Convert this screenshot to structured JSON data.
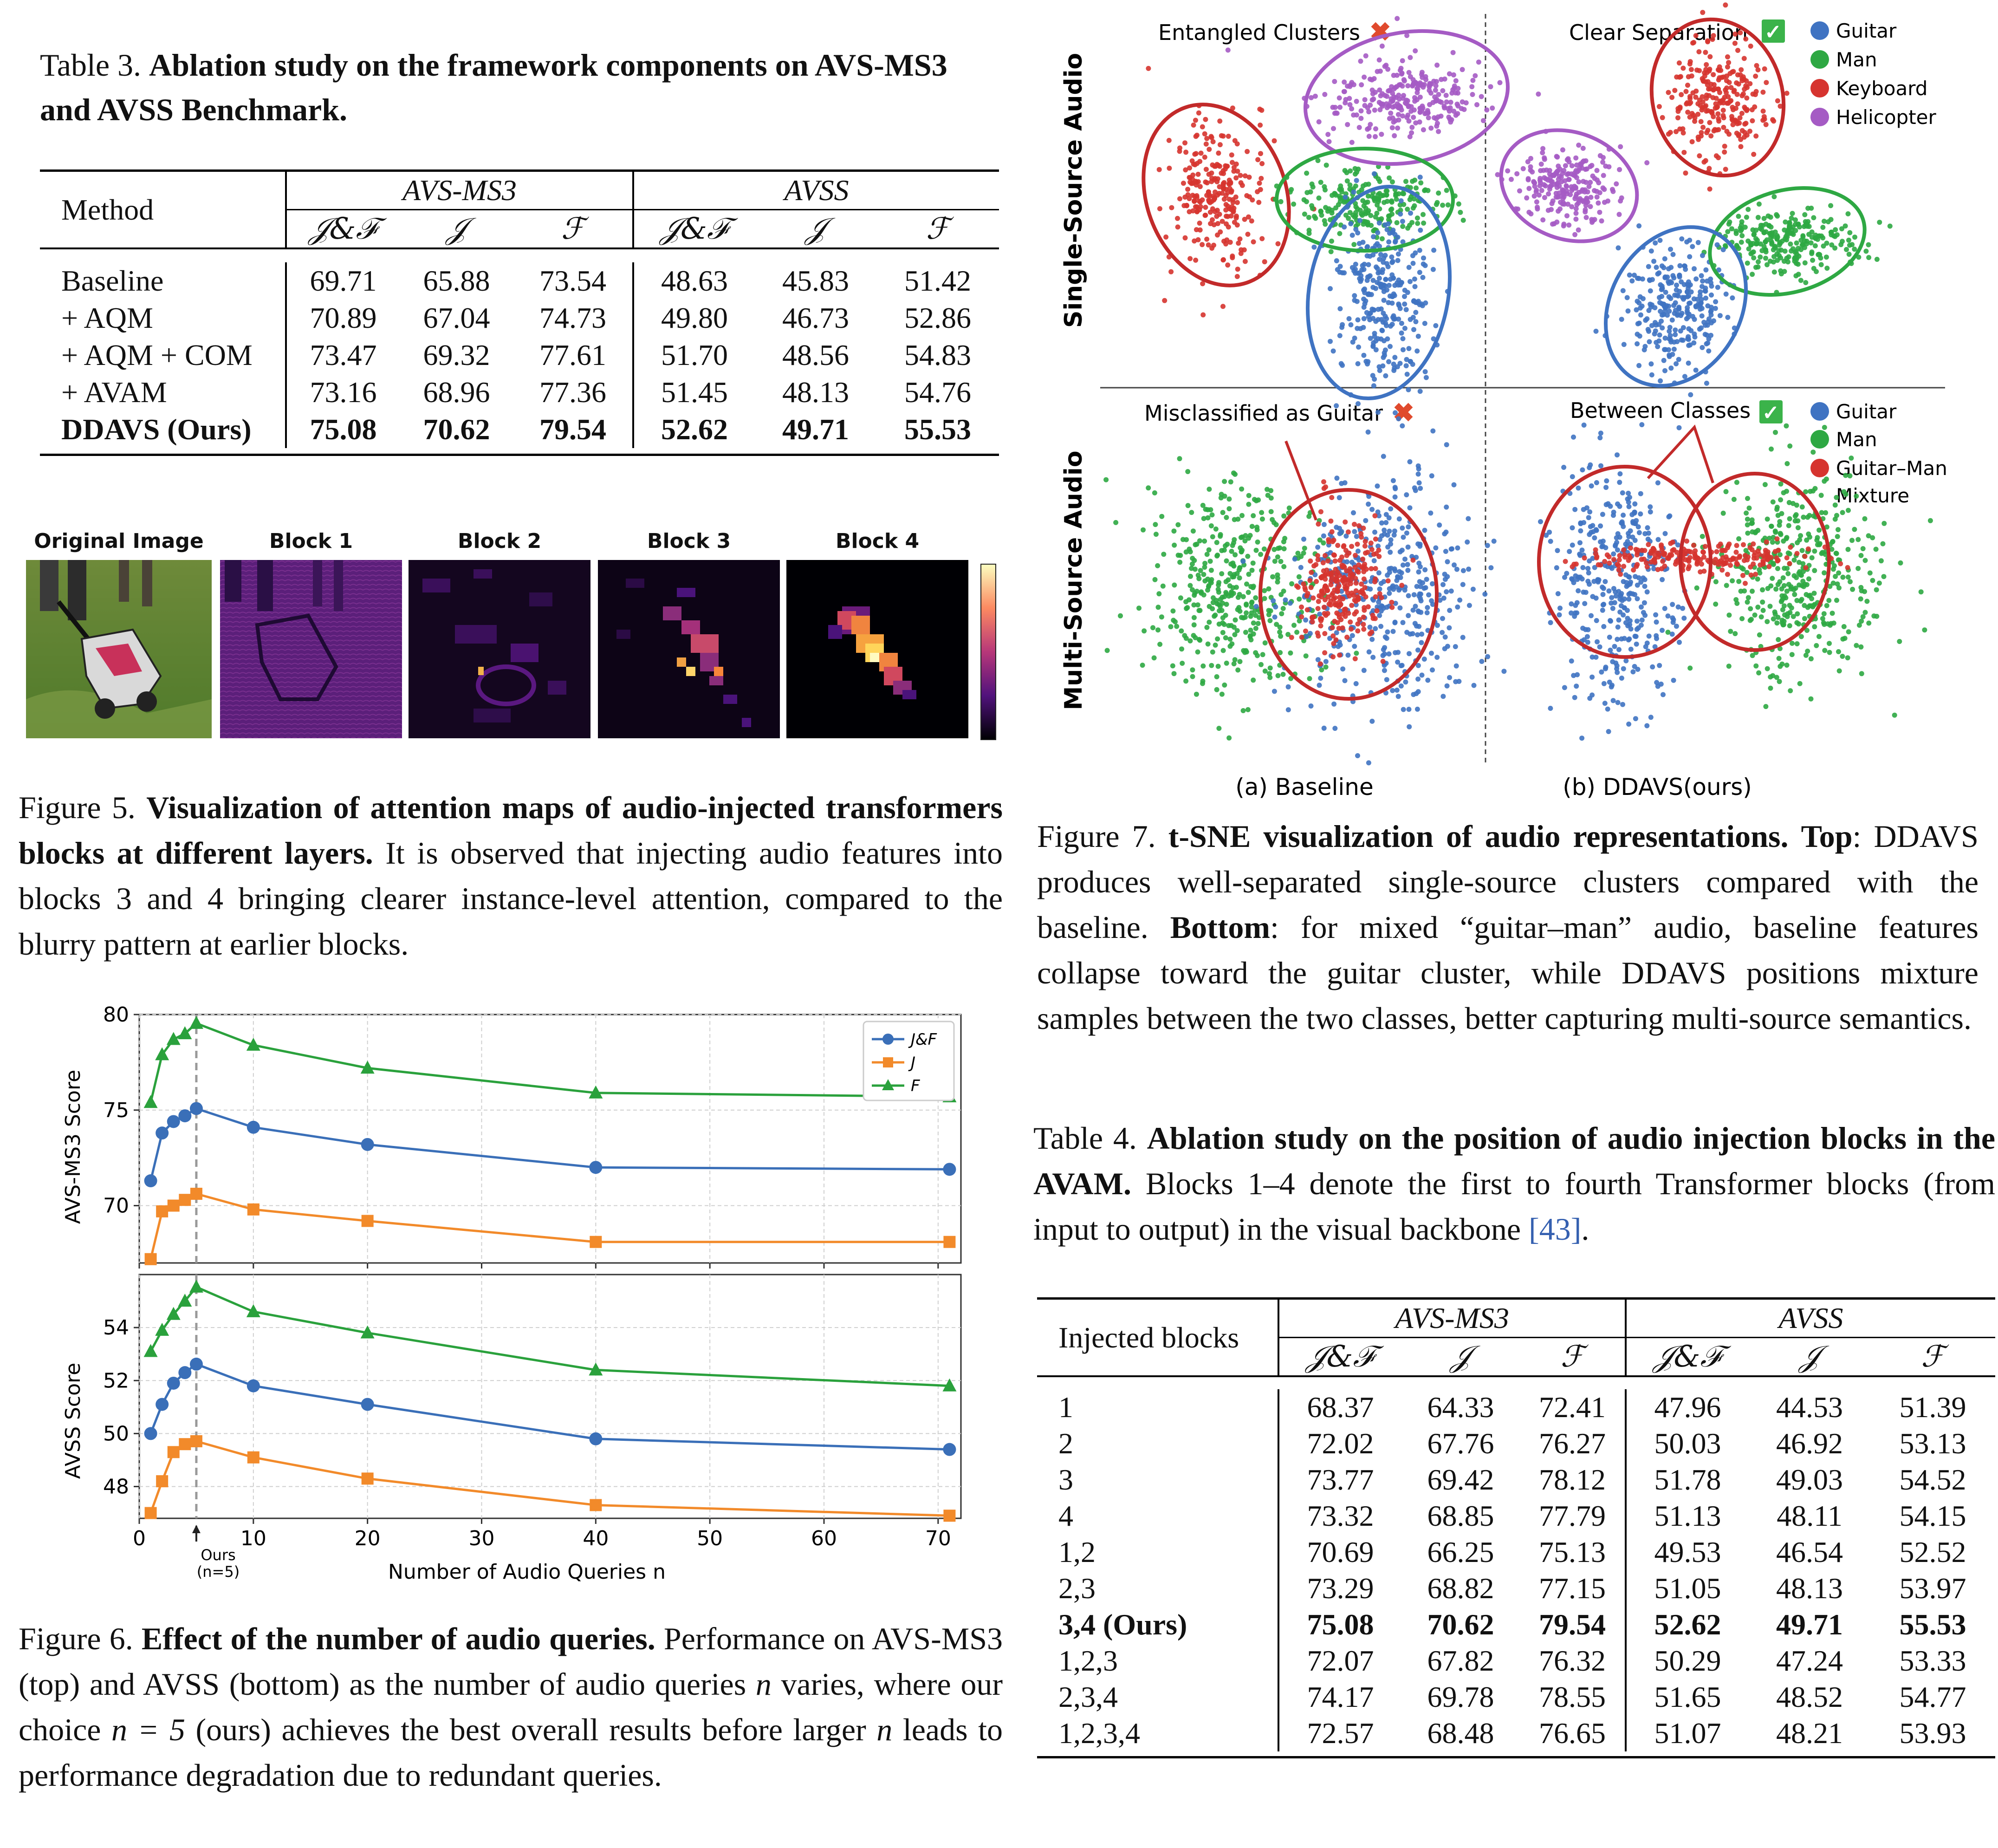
{
  "table3": {
    "label": "Table 3.",
    "title": "Ablation study on the framework components on AVS-MS3 and AVSS Benchmark.",
    "method_header": "Method",
    "group_headers": [
      "AVS-MS3",
      "AVSS"
    ],
    "metric_headers": [
      "𝒥&ℱ",
      "𝒥",
      "ℱ",
      "𝒥&ℱ",
      "𝒥",
      "ℱ"
    ],
    "rows": [
      {
        "method": "Baseline",
        "values": [
          "69.71",
          "65.88",
          "73.54",
          "48.63",
          "45.83",
          "51.42"
        ]
      },
      {
        "method": "+ AQM",
        "values": [
          "70.89",
          "67.04",
          "74.73",
          "49.80",
          "46.73",
          "52.86"
        ]
      },
      {
        "method": "+ AQM + COM",
        "values": [
          "73.47",
          "69.32",
          "77.61",
          "51.70",
          "48.56",
          "54.83"
        ]
      },
      {
        "method": "+ AVAM",
        "values": [
          "73.16",
          "68.96",
          "77.36",
          "51.45",
          "48.13",
          "54.76"
        ]
      },
      {
        "method": "DDAVS (Ours)",
        "values": [
          "75.08",
          "70.62",
          "79.54",
          "52.62",
          "49.71",
          "55.53"
        ],
        "bold": true
      }
    ]
  },
  "figure5": {
    "panel_titles": [
      "Original Image",
      "Block 1",
      "Block 2",
      "Block 3",
      "Block 4"
    ],
    "label": "Figure 5.",
    "title": "Visualization of attention maps of audio-injected transformers blocks at different layers.",
    "body": "It is observed that injecting audio features into blocks 3 and 4 bringing clearer instance-level attention, compared to the blurry pattern at earlier blocks."
  },
  "figure6": {
    "label": "Figure 6.",
    "title": "Effect of the number of audio queries.",
    "body_1": "Performance on AVS-MS3 (top) and AVSS (bottom) as the number of audio queries",
    "body_n1": "n",
    "body_2": "varies, where our choice",
    "body_eq": "n = 5",
    "body_3": "(ours) achieves the best overall results before larger",
    "body_n2": "n",
    "body_4": "leads to performance degradation due to redundant queries.",
    "xlabel": "Number of Audio Queries n",
    "ours_label_1": "Ours",
    "ours_label_2": "(n=5)",
    "legend": [
      "J&F",
      "J",
      "F"
    ]
  },
  "chart_data": [
    {
      "type": "line",
      "title": "",
      "xlabel": "Number of Audio Queries n",
      "ylabel": "AVS-MS3 Score",
      "x": [
        1,
        2,
        3,
        4,
        5,
        10,
        20,
        40,
        71
      ],
      "xlim": [
        0,
        72
      ],
      "ylim": [
        67,
        80
      ],
      "xticks": [
        0,
        10,
        20,
        30,
        40,
        50,
        60,
        70
      ],
      "yticks": [
        70,
        75,
        80
      ],
      "grid": true,
      "legend_position": "top-right",
      "colors": {
        "J&F": "#3a6fb8",
        "J": "#f28a2a",
        "F": "#2aa13c"
      },
      "series": [
        {
          "name": "J&F",
          "marker": "circle",
          "values": [
            71.3,
            73.8,
            74.4,
            74.7,
            75.08,
            74.1,
            73.2,
            72.0,
            71.9
          ]
        },
        {
          "name": "J",
          "marker": "square",
          "values": [
            67.2,
            69.7,
            70.0,
            70.3,
            70.62,
            69.8,
            69.2,
            68.1,
            68.1
          ]
        },
        {
          "name": "F",
          "marker": "triangle",
          "values": [
            75.4,
            77.9,
            78.7,
            79.0,
            79.54,
            78.4,
            77.2,
            75.9,
            75.7
          ]
        }
      ]
    },
    {
      "type": "line",
      "title": "",
      "xlabel": "Number of Audio Queries n",
      "ylabel": "AVSS Score",
      "x": [
        1,
        2,
        3,
        4,
        5,
        10,
        20,
        40,
        71
      ],
      "xlim": [
        0,
        72
      ],
      "ylim": [
        46.8,
        56
      ],
      "xticks": [
        0,
        10,
        20,
        30,
        40,
        50,
        60,
        70
      ],
      "yticks": [
        48,
        50,
        52,
        54
      ],
      "grid": true,
      "colors": {
        "J&F": "#3a6fb8",
        "J": "#f28a2a",
        "F": "#2aa13c"
      },
      "series": [
        {
          "name": "J&F",
          "marker": "circle",
          "values": [
            50.0,
            51.1,
            51.9,
            52.3,
            52.62,
            51.8,
            51.1,
            49.8,
            49.4
          ]
        },
        {
          "name": "J",
          "marker": "square",
          "values": [
            47.0,
            48.2,
            49.3,
            49.6,
            49.71,
            49.1,
            48.3,
            47.3,
            46.9
          ]
        },
        {
          "name": "F",
          "marker": "triangle",
          "values": [
            53.1,
            53.9,
            54.5,
            55.0,
            55.53,
            54.6,
            53.8,
            52.4,
            51.8
          ]
        }
      ]
    }
  ],
  "figure7": {
    "row_labels": [
      "Single-Source Audio",
      "Multi-Source Audio"
    ],
    "top_left_title": "Entangled Clusters",
    "top_right_title": "Clear Separation",
    "bottom_left_title": "Misclassified as Guitar",
    "bottom_right_title": "Between Classes",
    "legend_top": [
      "Guitar",
      "Man",
      "Keyboard",
      "Helicopter"
    ],
    "legend_bottom": [
      "Guitar",
      "Man",
      "Guitar–Man",
      "Mixture"
    ],
    "col_labels": [
      "(a) Baseline",
      "(b) DDAVS(ours)"
    ],
    "colors": {
      "guitar": "#3f73c2",
      "man": "#2ea843",
      "keyboard": "#d6342f",
      "helicopter": "#a55bc4",
      "cross": "#e04a2d",
      "check": "#3bb34a"
    },
    "label": "Figure 7.",
    "title": "t-SNE visualization of audio representations.",
    "top_word": "Top",
    "body_top": ": DDAVS produces well-separated single-source clusters compared with the baseline.",
    "bottom_word": "Bottom",
    "body_bottom": ": for mixed “guitar–man” audio, baseline features collapse toward the guitar cluster, while DDAVS positions mixture samples between the two classes, better capturing multi-source semantics."
  },
  "table4": {
    "label": "Table 4.",
    "title": "Ablation study on the position of audio injection blocks in the AVAM.",
    "body_1": "Blocks 1–4 denote the first to fourth Transformer blocks (from input to output) in the visual backbone",
    "ref": "[43]",
    "body_2": ".",
    "first_header": "Injected blocks",
    "group_headers": [
      "AVS-MS3",
      "AVSS"
    ],
    "metric_headers": [
      "𝒥&ℱ",
      "𝒥",
      "ℱ",
      "𝒥&ℱ",
      "𝒥",
      "ℱ"
    ],
    "rows": [
      {
        "blocks": "1",
        "values": [
          "68.37",
          "64.33",
          "72.41",
          "47.96",
          "44.53",
          "51.39"
        ]
      },
      {
        "blocks": "2",
        "values": [
          "72.02",
          "67.76",
          "76.27",
          "50.03",
          "46.92",
          "53.13"
        ]
      },
      {
        "blocks": "3",
        "values": [
          "73.77",
          "69.42",
          "78.12",
          "51.78",
          "49.03",
          "54.52"
        ]
      },
      {
        "blocks": "4",
        "values": [
          "73.32",
          "68.85",
          "77.79",
          "51.13",
          "48.11",
          "54.15"
        ]
      },
      {
        "blocks": "1,2",
        "values": [
          "70.69",
          "66.25",
          "75.13",
          "49.53",
          "46.54",
          "52.52"
        ]
      },
      {
        "blocks": "2,3",
        "values": [
          "73.29",
          "68.82",
          "77.15",
          "51.05",
          "48.13",
          "53.97"
        ]
      },
      {
        "blocks": "3,4 (Ours)",
        "values": [
          "75.08",
          "70.62",
          "79.54",
          "52.62",
          "49.71",
          "55.53"
        ],
        "bold": true
      },
      {
        "blocks": "1,2,3",
        "values": [
          "72.07",
          "67.82",
          "76.32",
          "50.29",
          "47.24",
          "53.33"
        ]
      },
      {
        "blocks": "2,3,4",
        "values": [
          "74.17",
          "69.78",
          "78.55",
          "51.65",
          "48.52",
          "54.77"
        ]
      },
      {
        "blocks": "1,2,3,4",
        "values": [
          "72.57",
          "68.48",
          "76.65",
          "51.07",
          "48.21",
          "53.93"
        ]
      }
    ]
  }
}
